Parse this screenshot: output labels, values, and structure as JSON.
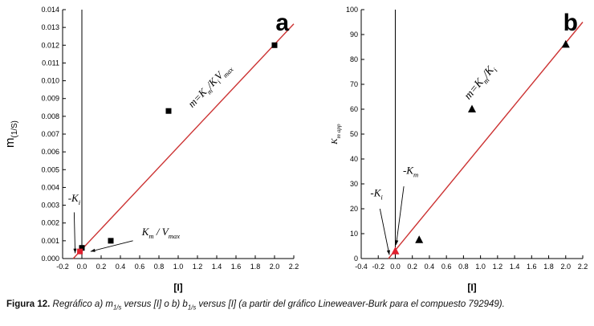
{
  "caption": {
    "label": "Figura 12.",
    "body_1": " Regráfico a) m",
    "sub_1": "1/s",
    "body_2": " versus [I] o b) b",
    "sub_2": "1/s",
    "body_3": " versus [I]  (a partir del gráfico Lineweaver-Burk para el compuesto 792949)."
  },
  "chart_data": [
    {
      "type": "scatter",
      "panel_label": "a",
      "xlabel": "[I]",
      "ylabel_parts": [
        {
          "t": "m"
        },
        {
          "t": "(1/S)",
          "sub": true
        }
      ],
      "ylabel_size": 15,
      "ylabel_italic": false,
      "xlim": [
        -0.2,
        2.2
      ],
      "ylim": [
        0,
        0.014
      ],
      "zero_line": true,
      "xticks": {
        "values": [
          -0.2,
          0,
          0.2,
          0.4,
          0.6,
          0.8,
          1,
          1.2,
          1.4,
          1.6,
          1.8,
          2,
          2.2
        ],
        "labels": [
          "-0.2",
          "0.0",
          "0.2",
          "0.4",
          "0.6",
          "0.8",
          "1.0",
          "1.2",
          "1.4",
          "1.6",
          "1.8",
          "2.0",
          "2.2"
        ]
      },
      "yticks": {
        "values": [
          0,
          0.001,
          0.002,
          0.003,
          0.004,
          0.005,
          0.006,
          0.007,
          0.008,
          0.009,
          0.01,
          0.011,
          0.012,
          0.013,
          0.014
        ],
        "labels": [
          "0.000",
          "0.001",
          "0.002",
          "0.003",
          "0.004",
          "0.005",
          "0.006",
          "0.007",
          "0.008",
          "0.009",
          "0.010",
          "0.011",
          "0.012",
          "0.013",
          "0.014"
        ]
      },
      "series": [
        {
          "name": "m1s-data",
          "marker": "square",
          "color": "#000000",
          "points": [
            [
              0.0,
              0.0006
            ],
            [
              0.3,
              0.001
            ],
            [
              0.9,
              0.0083
            ],
            [
              2.0,
              0.012
            ]
          ]
        },
        {
          "name": "y-intercept-point",
          "marker": "square",
          "color": "#e0202e",
          "points": [
            [
              -0.02,
              0.0004
            ]
          ]
        }
      ],
      "fit_line": {
        "color": "#cc3333",
        "x1": -0.09,
        "y1": 0,
        "x2": 2.2,
        "y2": 0.0132
      },
      "annotations": [
        {
          "parts": [
            {
              "t": "m=K"
            },
            {
              "t": "m",
              "sub": true
            },
            {
              "t": "/K"
            },
            {
              "t": "i",
              "sub": true
            },
            {
              "t": "V"
            },
            {
              "t": "max",
              "sub": true
            }
          ],
          "x": 1.35,
          "y": 0.0096,
          "rotate": -46,
          "size": 13,
          "italic": true
        },
        {
          "parts": [
            {
              "t": "-K"
            },
            {
              "t": "i",
              "sub": true
            }
          ],
          "x": -0.08,
          "y": 0.0032,
          "rotate": 0,
          "size": 13,
          "italic": true
        },
        {
          "parts": [
            {
              "t": "K"
            },
            {
              "t": "m",
              "sub": true
            },
            {
              "t": " / V"
            },
            {
              "t": "max",
              "sub": true
            }
          ],
          "x": 0.82,
          "y": 0.0013,
          "rotate": 0,
          "size": 13,
          "italic": true
        }
      ],
      "arrows": [
        {
          "x1": -0.08,
          "y1": 0.0026,
          "x2": -0.07,
          "y2": 0.0003
        },
        {
          "x1": 0.53,
          "y1": 0.001,
          "x2": 0.09,
          "y2": 0.0004
        }
      ]
    },
    {
      "type": "scatter",
      "panel_label": "b",
      "xlabel": "[I]",
      "ylabel_parts": [
        {
          "t": "K"
        },
        {
          "t": "m app",
          "sub": true
        }
      ],
      "ylabel_size": 11,
      "ylabel_italic": true,
      "xlim": [
        -0.4,
        2.2
      ],
      "ylim": [
        0,
        100
      ],
      "zero_line": true,
      "xticks": {
        "values": [
          -0.4,
          -0.2,
          0,
          0.2,
          0.4,
          0.6,
          0.8,
          1,
          1.2,
          1.4,
          1.6,
          1.8,
          2,
          2.2
        ],
        "labels": [
          "-0.4",
          "-0.2",
          "0.0",
          "0.2",
          "0.4",
          "0.6",
          "0.8",
          "1.0",
          "1.2",
          "1.4",
          "1.6",
          "1.8",
          "2.0",
          "2.2"
        ]
      },
      "yticks": {
        "values": [
          0,
          10,
          20,
          30,
          40,
          50,
          60,
          70,
          80,
          90,
          100
        ],
        "labels": [
          "0",
          "10",
          "20",
          "30",
          "40",
          "50",
          "60",
          "70",
          "80",
          "90",
          "100"
        ]
      },
      "series": [
        {
          "name": "km-app-data",
          "marker": "triangle",
          "color": "#000000",
          "points": [
            [
              0.28,
              7.5
            ],
            [
              0.9,
              60
            ],
            [
              2.0,
              86
            ]
          ]
        },
        {
          "name": "y-intercept-point",
          "marker": "triangle",
          "color": "#e0202e",
          "points": [
            [
              0.0,
              3
            ]
          ]
        }
      ],
      "fit_line": {
        "color": "#cc3333",
        "x1": -0.08,
        "y1": 0,
        "x2": 2.2,
        "y2": 95
      },
      "annotations": [
        {
          "parts": [
            {
              "t": "m=K"
            },
            {
              "t": "m",
              "sub": true
            },
            {
              "t": "/K"
            },
            {
              "t": "i",
              "sub": true
            }
          ],
          "x": 1.02,
          "y": 70,
          "rotate": -50,
          "size": 14,
          "italic": true
        },
        {
          "parts": [
            {
              "t": "-K"
            },
            {
              "t": "i",
              "sub": true
            }
          ],
          "x": -0.22,
          "y": 25,
          "rotate": 0,
          "size": 13,
          "italic": true
        },
        {
          "parts": [
            {
              "t": "-K"
            },
            {
              "t": "m",
              "sub": true
            }
          ],
          "x": 0.18,
          "y": 34,
          "rotate": 0,
          "size": 13,
          "italic": true
        }
      ],
      "arrows": [
        {
          "x1": -0.18,
          "y1": 20,
          "x2": -0.07,
          "y2": 1.5
        },
        {
          "x1": 0.1,
          "y1": 29,
          "x2": 0.01,
          "y2": 5.5
        }
      ]
    }
  ]
}
